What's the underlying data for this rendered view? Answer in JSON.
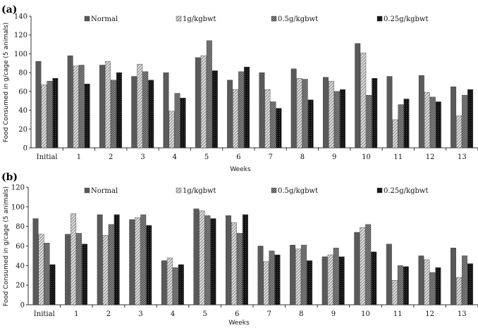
{
  "chart_data": [
    {
      "type": "bar",
      "panel_label": "(a)",
      "xlabel": "Weeks",
      "ylabel": "Food Consumed in g/cage (5 animals)",
      "ylim": [
        0,
        140
      ],
      "yticks": [
        0,
        20,
        40,
        60,
        80,
        100,
        120,
        140
      ],
      "categories": [
        "Initial",
        "1",
        "2",
        "3",
        "4",
        "5",
        "6",
        "7",
        "8",
        "9",
        "10",
        "11",
        "12",
        "13"
      ],
      "legend_position": "top",
      "series": [
        {
          "name": "Normal",
          "values": [
            92,
            98,
            88,
            76,
            80,
            96,
            72,
            80,
            84,
            75,
            111,
            76,
            77,
            65
          ]
        },
        {
          "name": "1g/kgbwt",
          "values": [
            67,
            87,
            92,
            89,
            39,
            98,
            62,
            62,
            74,
            71,
            101,
            30,
            59,
            34
          ]
        },
        {
          "name": "0.5g/kgbwt",
          "values": [
            71,
            88,
            72,
            81,
            58,
            114,
            81,
            49,
            73,
            60,
            56,
            46,
            54,
            56
          ]
        },
        {
          "name": "0.25g/kgbwt",
          "values": [
            74,
            68,
            80,
            72,
            53,
            82,
            86,
            42,
            51,
            62,
            74,
            52,
            49,
            62
          ]
        }
      ]
    },
    {
      "type": "bar",
      "panel_label": "(b)",
      "xlabel": "Weeks",
      "ylabel": "Food Consumed in g/cage (5 animals)",
      "ylim": [
        0,
        120
      ],
      "yticks": [
        0,
        20,
        40,
        60,
        80,
        100,
        120
      ],
      "categories": [
        "Initial",
        "1",
        "2",
        "3",
        "4",
        "5",
        "6",
        "7",
        "8",
        "9",
        "10",
        "11",
        "12",
        "13"
      ],
      "legend_position": "top",
      "series": [
        {
          "name": "Normal",
          "values": [
            88,
            72,
            92,
            87,
            45,
            98,
            91,
            60,
            61,
            49,
            74,
            62,
            50,
            58
          ]
        },
        {
          "name": "1g/kgbwt",
          "values": [
            72,
            93,
            71,
            89,
            48,
            96,
            84,
            44,
            57,
            51,
            79,
            25,
            46,
            28
          ]
        },
        {
          "name": "0.5g/kgbwt",
          "values": [
            63,
            73,
            82,
            92,
            38,
            91,
            73,
            55,
            61,
            58,
            82,
            40,
            33,
            50
          ]
        },
        {
          "name": "0.25g/kgbwt",
          "values": [
            41,
            62,
            92,
            81,
            41,
            88,
            92,
            51,
            45,
            49,
            54,
            39,
            38,
            42
          ]
        }
      ]
    }
  ]
}
